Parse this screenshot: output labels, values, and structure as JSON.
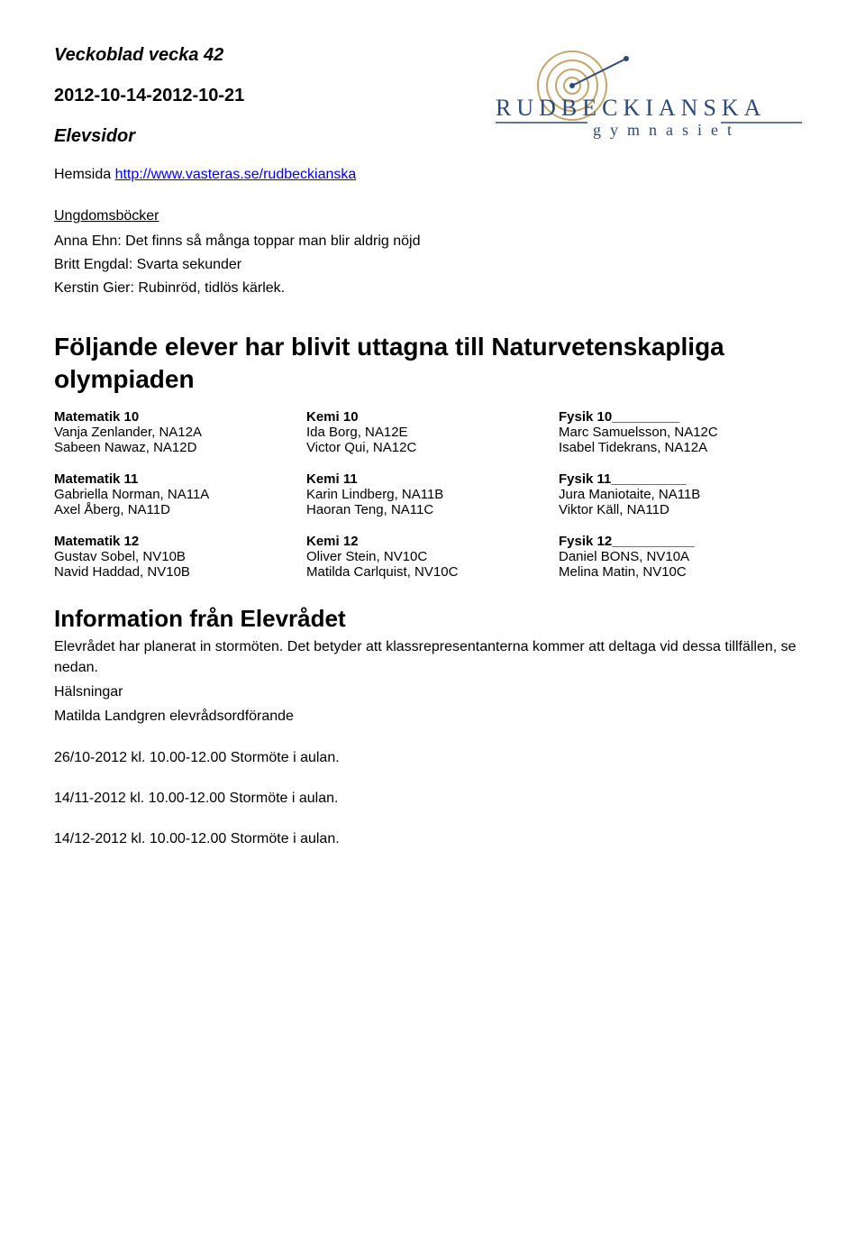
{
  "header": {
    "title": "Veckoblad vecka 42",
    "dates": "2012-10-14-2012-10-21",
    "section": "Elevsidor",
    "homepage_label": "Hemsida ",
    "homepage_link": "http://www.vasteras.se/rudbeckianska"
  },
  "logo": {
    "main": "RUDBECKIANSKA",
    "sub": "gymnasiet",
    "spiral_color": "#c7a46a",
    "accent_color": "#2b4a7a"
  },
  "books": {
    "heading": "Ungdomsböcker",
    "items": [
      "Anna Ehn: Det finns så många toppar man blir aldrig nöjd",
      "Britt Engdal: Svarta sekunder",
      "Kerstin Gier: Rubinröd, tidlös kärlek."
    ]
  },
  "olympiad": {
    "heading": "Följande elever har blivit uttagna till Naturvetenskapliga olympiaden",
    "groups": [
      {
        "cols": [
          {
            "head": "Matematik 10",
            "rows": [
              "Vanja Zenlander, NA12A",
              "Sabeen Nawaz, NA12D"
            ]
          },
          {
            "head": "Kemi 10",
            "rows": [
              "Ida Borg, NA12E",
              "Victor Qui, NA12C"
            ]
          },
          {
            "head": "Fysik 10_________",
            "rows": [
              "Marc Samuelsson, NA12C",
              "Isabel Tidekrans, NA12A"
            ]
          }
        ]
      },
      {
        "cols": [
          {
            "head": "Matematik 11",
            "rows": [
              "Gabriella Norman, NA11A",
              "Axel Åberg, NA11D"
            ]
          },
          {
            "head": "Kemi 11",
            "rows": [
              "Karin Lindberg, NA11B",
              "Haoran Teng, NA11C"
            ]
          },
          {
            "head": "Fysik 11__________",
            "rows": [
              "Jura Maniotaite, NA11B",
              "Viktor Käll, NA11D"
            ]
          }
        ]
      },
      {
        "cols": [
          {
            "head": "Matematik 12",
            "rows": [
              "Gustav Sobel, NV10B",
              "Navid Haddad, NV10B"
            ]
          },
          {
            "head": "Kemi 12",
            "rows": [
              "Oliver Stein, NV10C",
              "Matilda Carlquist, NV10C"
            ]
          },
          {
            "head": "Fysik 12___________",
            "rows": [
              "Daniel BONS, NV10A",
              "Melina Matin, NV10C"
            ]
          }
        ]
      }
    ]
  },
  "council": {
    "heading": "Information från Elevrådet",
    "para1": "Elevrådet har planerat in stormöten. Det betyder att klassrepresentanterna kommer att deltaga vid dessa tillfällen, se nedan.",
    "para2": "Hälsningar",
    "para3": "Matilda Landgren elevrådsordförande",
    "meetings": [
      "26/10-2012 kl. 10.00-12.00 Stormöte i aulan.",
      "14/11-2012 kl. 10.00-12.00 Stormöte i aulan.",
      "14/12-2012 kl. 10.00-12.00 Stormöte i aulan."
    ]
  }
}
